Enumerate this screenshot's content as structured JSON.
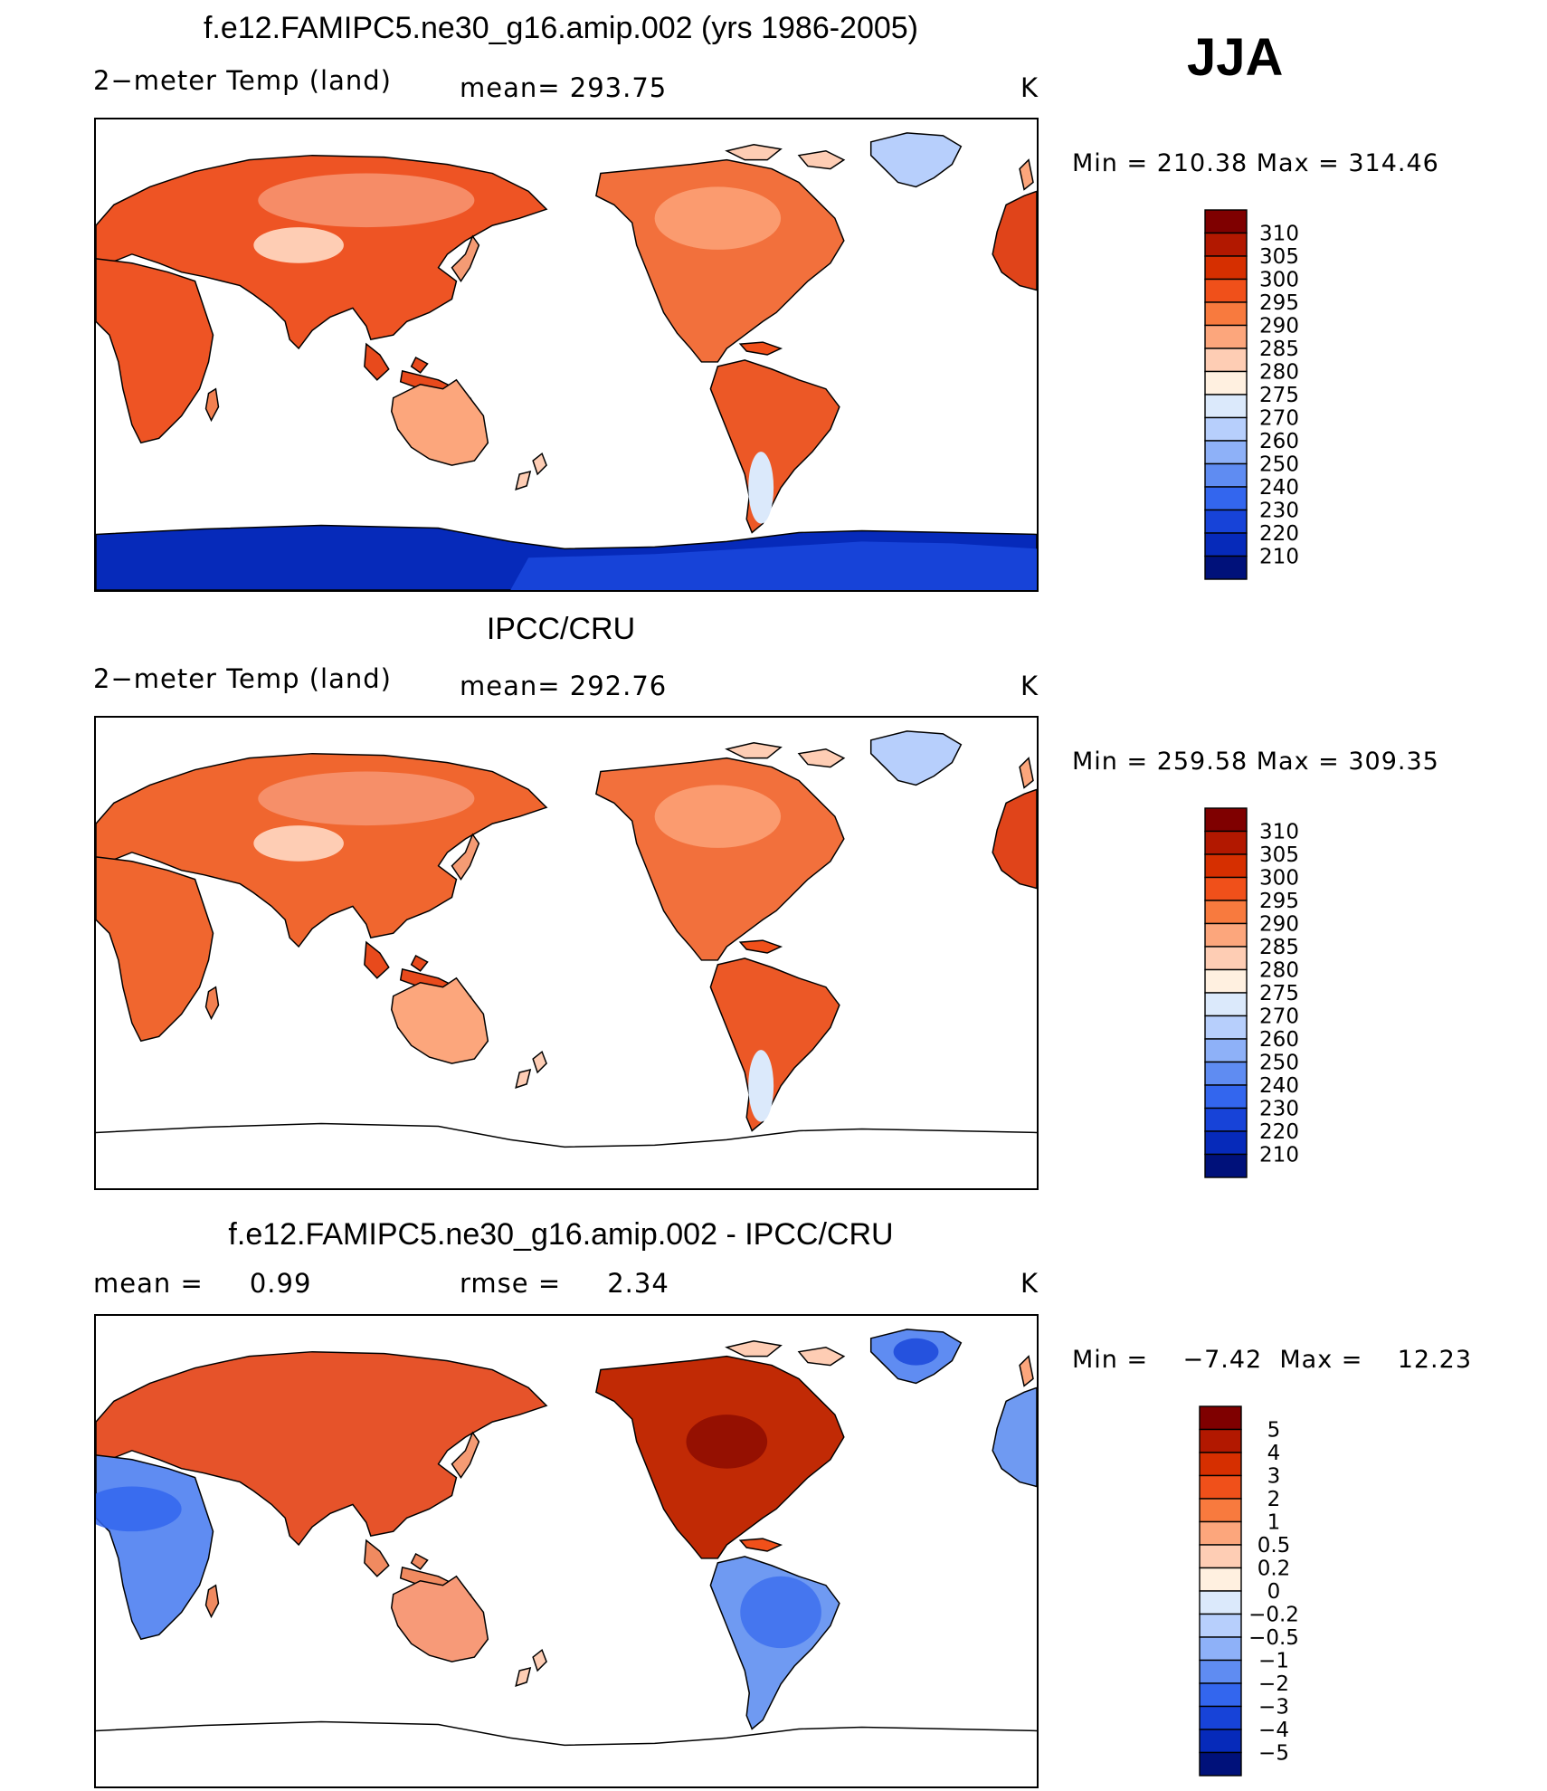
{
  "season": "JJA",
  "panels": [
    {
      "title": "f.e12.FAMIPC5.ne30_g16.amip.002 (yrs 1986-2005)",
      "left_label": "2−meter Temp (land)",
      "middle_label": "mean= 293.75",
      "right_label": "K",
      "minmax": "Min = 210.38  Max = 314.46",
      "colorbar_labels": [
        "310",
        "305",
        "300",
        "295",
        "290",
        "285",
        "280",
        "275",
        "270",
        "260",
        "250",
        "240",
        "230",
        "220",
        "210"
      ],
      "antarctica": "cold"
    },
    {
      "title": "IPCC/CRU",
      "left_label": "2−meter Temp (land)",
      "middle_label": "mean= 292.76",
      "right_label": "K",
      "minmax": "Min = 259.58  Max = 309.35",
      "colorbar_labels": [
        "310",
        "305",
        "300",
        "295",
        "290",
        "285",
        "280",
        "275",
        "270",
        "260",
        "250",
        "240",
        "230",
        "220",
        "210"
      ],
      "antarctica": "none"
    },
    {
      "title": "f.e12.FAMIPC5.ne30_g16.amip.002 - IPCC/CRU",
      "left_label": "mean =     0.99",
      "middle_label": "rmse =     2.34",
      "right_label": "K",
      "minmax": "Min =    −7.42  Max =    12.23",
      "colorbar_labels": [
        "5",
        "4",
        "3",
        "2",
        "1",
        "0.5",
        "0.2",
        "0",
        "−0.2",
        "−0.5",
        "−1",
        "−2",
        "−3",
        "−4",
        "−5"
      ],
      "antarctica": "none"
    }
  ],
  "colors": {
    "colorbar": [
      "#7f0000",
      "#b21800",
      "#d62f00",
      "#f0501a",
      "#f87a3e",
      "#fca67c",
      "#fecdb4",
      "#fff0e0",
      "#dbe9fb",
      "#b7cffc",
      "#8eb1f8",
      "#5f8cf2",
      "#3366ee",
      "#1743d8",
      "#062aba",
      "#00117a"
    ],
    "coast": "#000000"
  }
}
